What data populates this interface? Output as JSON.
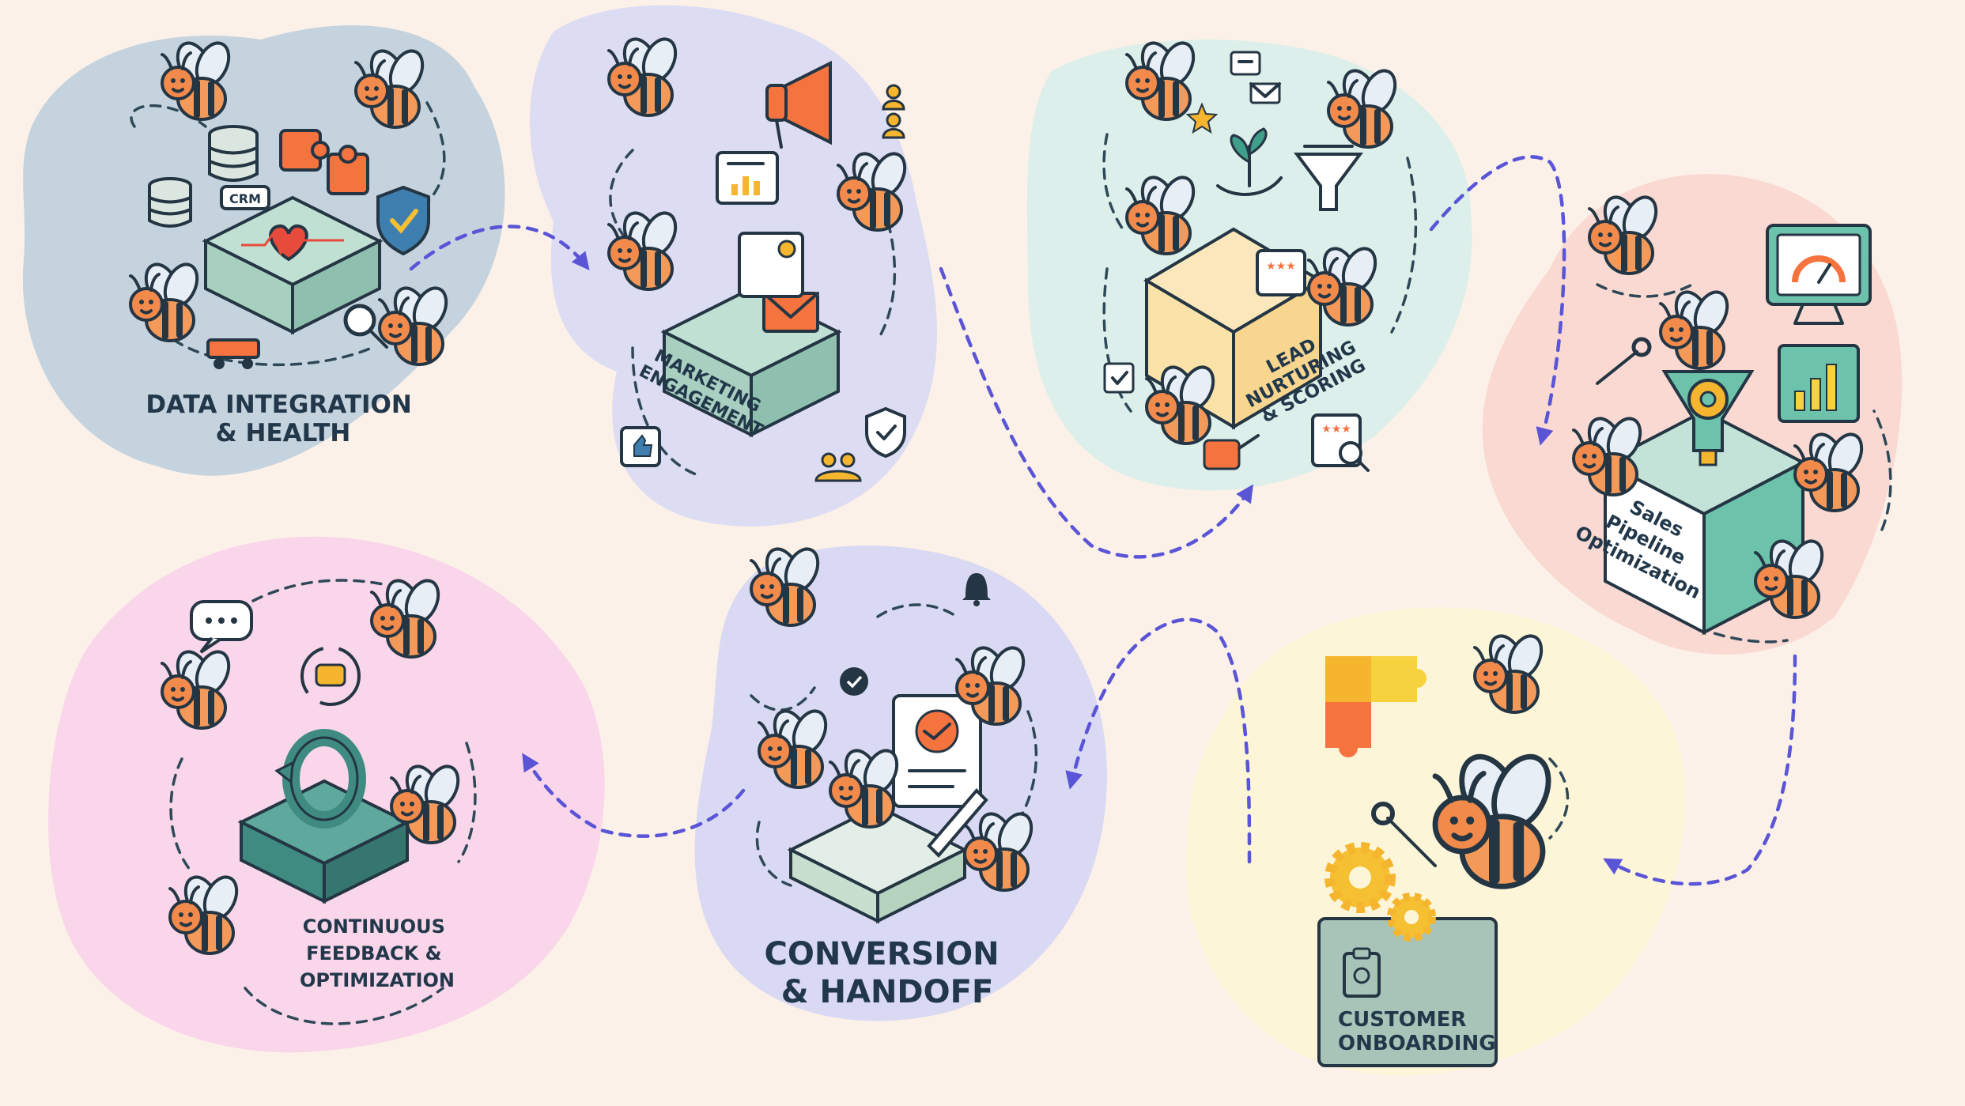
{
  "stages": [
    {
      "id": "data",
      "label_lines": [
        "DATA INTEGRATION",
        "& HEALTH"
      ],
      "color": "#c5d3df",
      "icon_tag": "CRM"
    },
    {
      "id": "marketing",
      "label_lines": [
        "MARKETING",
        "ENGAGEMENT"
      ],
      "color": "#dcdcf3"
    },
    {
      "id": "lead",
      "label_lines": [
        "LEAD",
        "NURTURING",
        "& SCORING"
      ],
      "color": "#dcefea"
    },
    {
      "id": "sales",
      "label_lines": [
        "Sales",
        "Pipeline",
        "Optimization"
      ],
      "color": "#f9d9d2"
    },
    {
      "id": "onboarding",
      "label_lines": [
        "CUSTOMER",
        "ONBOARDING"
      ],
      "color": "#fcf5d8"
    },
    {
      "id": "conversion",
      "label_lines": [
        "CONVERSION",
        "& HANDOFF"
      ],
      "color": "#d9d9f3"
    },
    {
      "id": "feedback",
      "label_lines": [
        "CONTINUOUS",
        "FEEDBACK &",
        "OPTIMIZATION"
      ],
      "color": "#f9d6ea"
    }
  ],
  "colors": {
    "background": "#fcf1e8",
    "flow_arrow": "#5a55d6",
    "ink": "#243543",
    "bee_orange": "#f28a4c",
    "platform_green": "#a8cfc0",
    "accent_yellow": "#f6b52e"
  },
  "icons": [
    "bee-icon",
    "magnifier-icon",
    "wrench-icon",
    "puzzle-icon",
    "shield-check-icon",
    "database-icon",
    "heart-icon",
    "megaphone-icon",
    "chart-card-icon",
    "envelope-icon",
    "thumbs-up-icon",
    "users-icon",
    "plant-hand-icon",
    "funnel-icon",
    "star-icon",
    "watering-can-icon",
    "monitor-gauge-icon",
    "bar-chart-icon",
    "gear-funnel-icon",
    "gear-icon",
    "clipboard-gear-icon",
    "bell-icon",
    "check-circle-icon",
    "handshake-document-icon",
    "pen-icon",
    "chat-bubble-icon",
    "cycle-icon"
  ]
}
